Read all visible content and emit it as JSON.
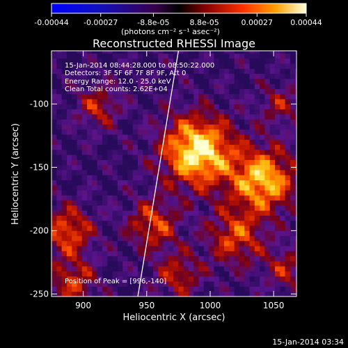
{
  "chart_data": {
    "type": "heatmap",
    "title": "Reconstructed RHESSI Image",
    "xlabel": "Heliocentric X (arcsec)",
    "ylabel": "Heliocentric Y (arcsec)",
    "xlim": [
      875,
      1068
    ],
    "ylim": [
      -252,
      -58
    ],
    "x_ticks": [
      900,
      950,
      1000,
      1050
    ],
    "y_ticks": [
      -100,
      -150,
      -200,
      -250
    ],
    "colorbar": {
      "range": [
        -0.00044,
        0.00044
      ],
      "tick_values": [
        -0.00044,
        -0.00027,
        -8.8e-05,
        8.8e-05,
        0.00027,
        0.00044
      ],
      "tick_labels": [
        "-0.00044",
        "-0.00027",
        "-8.8e-05",
        "8.8e-05",
        "0.00027",
        "0.00044"
      ],
      "units_label": "(photons cm⁻² s⁻¹ asec⁻²)"
    },
    "annotations": {
      "time": "15-Jan-2014 08:44:28.000 to 08:50:22.000",
      "detectors": "Detectors: 3F 5F 6F 7F 8F 9F, Att 0",
      "energy": "Energy Range: 12.0 - 25.0 keV",
      "clean": "Clean     Total counts: 2.62E+04",
      "peak": "Position of Peak = [996,-140]"
    },
    "limb_line": {
      "x": [
        943,
        975
      ],
      "y": [
        -252,
        -58
      ]
    },
    "peak": [
      996,
      -140
    ],
    "sources": [
      {
        "x": 990,
        "y": -137,
        "sigma": 20,
        "amp": 1.0
      },
      {
        "x": 1042,
        "y": -160,
        "sigma": 18,
        "amp": 0.85
      },
      {
        "x": 1020,
        "y": -205,
        "sigma": 16,
        "amp": 0.55
      },
      {
        "x": 888,
        "y": -200,
        "sigma": 14,
        "amp": 0.6
      },
      {
        "x": 892,
        "y": -240,
        "sigma": 13,
        "amp": 0.5
      },
      {
        "x": 955,
        "y": -195,
        "sigma": 14,
        "amp": 0.55
      },
      {
        "x": 912,
        "y": -102,
        "sigma": 12,
        "amp": 0.45
      },
      {
        "x": 1055,
        "y": -100,
        "sigma": 12,
        "amp": 0.35
      },
      {
        "x": 1060,
        "y": -230,
        "sigma": 12,
        "amp": 0.4
      },
      {
        "x": 975,
        "y": -235,
        "sigma": 13,
        "amp": 0.45
      }
    ],
    "timestamp": "15-Jan-2014 03:34"
  }
}
